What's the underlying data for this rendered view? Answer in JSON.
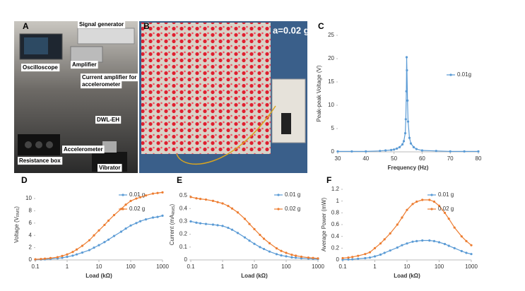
{
  "photos": [
    {
      "panel": "A",
      "labels": [
        "Signal generator",
        "Oscilloscope",
        "Amplifier",
        "Current amplifier for",
        "accelerometer",
        "DWL-EH",
        "Accelerometer",
        "Resistance box",
        "Vibrator"
      ]
    },
    {
      "panel": "B",
      "labels": [
        "a=0.02 g"
      ]
    }
  ],
  "chart_data": [
    {
      "type": "line",
      "panel": "C",
      "x_label": "Frequency (Hz)",
      "y_label": "Peak-peak Voltage (V)",
      "log_x": false,
      "legend": "right",
      "x": [
        30,
        35,
        40,
        45,
        47,
        49,
        50,
        51,
        52,
        53,
        53.5,
        54,
        54.2,
        54.4,
        54.5,
        54.6,
        54.8,
        55,
        55.5,
        56,
        57,
        58,
        60,
        65,
        70,
        75,
        80
      ],
      "series": [
        {
          "name": "0.01g",
          "color": "#5b9bd5",
          "values": [
            0.1,
            0.1,
            0.1,
            0.2,
            0.3,
            0.4,
            0.5,
            0.7,
            1.0,
            1.6,
            2.3,
            4,
            7,
            13,
            20.3,
            17.5,
            11,
            6.5,
            3,
            1.8,
            1,
            0.6,
            0.3,
            0.2,
            0.1,
            0.1,
            0.1
          ]
        }
      ],
      "xlim": [
        30,
        80
      ],
      "xticks": [
        30,
        40,
        50,
        60,
        70,
        80
      ],
      "ylim": [
        0,
        25
      ],
      "yticks": [
        0,
        5,
        10,
        15,
        20,
        25
      ],
      "grid": false
    },
    {
      "type": "line",
      "panel": "D",
      "x_label": "Load (kΩ)",
      "y_label": [
        "Voltage (V",
        "RMS",
        ")"
      ],
      "log_x": true,
      "legend": "upper right",
      "x": [
        0.1,
        0.15,
        0.2,
        0.3,
        0.5,
        0.7,
        1,
        1.5,
        2,
        3,
        5,
        7,
        10,
        15,
        20,
        30,
        50,
        70,
        100,
        150,
        200,
        300,
        500,
        700,
        1000
      ],
      "series": [
        {
          "name": "0.01 g",
          "color": "#5b9bd5",
          "values": [
            0.05,
            0.07,
            0.1,
            0.15,
            0.25,
            0.35,
            0.5,
            0.7,
            0.9,
            1.2,
            1.6,
            2.0,
            2.4,
            2.9,
            3.3,
            3.9,
            4.6,
            5.1,
            5.6,
            6.0,
            6.3,
            6.6,
            6.9,
            7.0,
            7.2
          ]
        },
        {
          "name": "0.02 g",
          "color": "#ed7d31",
          "values": [
            0.1,
            0.14,
            0.2,
            0.3,
            0.45,
            0.65,
            0.9,
            1.3,
            1.7,
            2.3,
            3.2,
            4.0,
            4.8,
            5.7,
            6.4,
            7.3,
            8.3,
            9.0,
            9.6,
            10.0,
            10.2,
            10.5,
            10.8,
            10.9,
            11.0
          ]
        }
      ],
      "xlim": [
        0.1,
        1000
      ],
      "xticks": [
        0.1,
        1,
        10,
        100,
        1000
      ],
      "ylim": [
        0,
        11.5
      ],
      "yticks": [
        0,
        2,
        4,
        6,
        8,
        10
      ],
      "grid": false
    },
    {
      "type": "line",
      "panel": "E",
      "x_label": "Load (kΩ)",
      "y_label": [
        "Current (mA",
        "RMS",
        ")"
      ],
      "log_x": true,
      "legend": "upper right",
      "x": [
        0.1,
        0.15,
        0.2,
        0.3,
        0.5,
        0.7,
        1,
        1.5,
        2,
        3,
        5,
        7,
        10,
        15,
        20,
        30,
        50,
        70,
        100,
        150,
        200,
        300,
        500,
        700,
        1000
      ],
      "series": [
        {
          "name": "0.01 g",
          "color": "#5b9bd5",
          "values": [
            0.3,
            0.29,
            0.285,
            0.28,
            0.275,
            0.27,
            0.265,
            0.25,
            0.235,
            0.21,
            0.175,
            0.15,
            0.125,
            0.1,
            0.085,
            0.065,
            0.045,
            0.035,
            0.028,
            0.02,
            0.017,
            0.013,
            0.01,
            0.008,
            0.007
          ]
        },
        {
          "name": "0.02 g",
          "color": "#ed7d31",
          "values": [
            0.49,
            0.48,
            0.475,
            0.47,
            0.46,
            0.45,
            0.44,
            0.42,
            0.4,
            0.37,
            0.32,
            0.28,
            0.24,
            0.195,
            0.165,
            0.13,
            0.09,
            0.07,
            0.055,
            0.04,
            0.033,
            0.025,
            0.018,
            0.015,
            0.012
          ]
        }
      ],
      "xlim": [
        0.1,
        1000
      ],
      "xticks": [
        0.1,
        1,
        10,
        100,
        1000
      ],
      "ylim": [
        0,
        0.55
      ],
      "yticks": [
        0,
        0.1,
        0.2,
        0.3,
        0.4,
        0.5
      ],
      "grid": false
    },
    {
      "type": "line",
      "panel": "F",
      "x_label": "Load (kΩ)",
      "y_label": "Average Power (mW)",
      "log_x": true,
      "legend": "upper right",
      "x": [
        0.1,
        0.15,
        0.2,
        0.3,
        0.5,
        0.7,
        1,
        1.5,
        2,
        3,
        5,
        7,
        10,
        15,
        20,
        30,
        50,
        70,
        100,
        150,
        200,
        300,
        500,
        700,
        1000
      ],
      "series": [
        {
          "name": "0.01 g",
          "color": "#5b9bd5",
          "values": [
            0.005,
            0.008,
            0.01,
            0.02,
            0.03,
            0.04,
            0.06,
            0.09,
            0.12,
            0.16,
            0.21,
            0.25,
            0.28,
            0.31,
            0.32,
            0.33,
            0.33,
            0.32,
            0.3,
            0.27,
            0.24,
            0.2,
            0.15,
            0.12,
            0.1
          ]
        },
        {
          "name": "0.02 g",
          "color": "#ed7d31",
          "values": [
            0.03,
            0.04,
            0.05,
            0.07,
            0.1,
            0.13,
            0.2,
            0.28,
            0.35,
            0.45,
            0.6,
            0.72,
            0.85,
            0.95,
            0.99,
            1.02,
            1.02,
            0.99,
            0.92,
            0.8,
            0.7,
            0.55,
            0.4,
            0.32,
            0.25
          ]
        }
      ],
      "xlim": [
        0.1,
        1000
      ],
      "xticks": [
        0.1,
        1,
        10,
        100,
        1000
      ],
      "ylim": [
        0,
        1.2
      ],
      "yticks": [
        0,
        0.2,
        0.4,
        0.6,
        0.8,
        1,
        1.2
      ],
      "grid": false
    }
  ]
}
